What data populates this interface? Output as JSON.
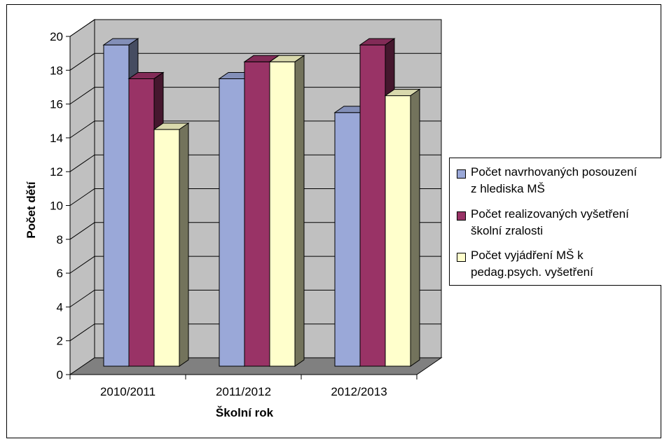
{
  "chart_data": {
    "type": "bar",
    "title": "",
    "xlabel": "Školní rok",
    "ylabel": "Počet dětí",
    "categories": [
      "2010/2011",
      "2011/2012",
      "2012/2013"
    ],
    "ylim": [
      0,
      20
    ],
    "yticks": [
      "0",
      "2",
      "4",
      "6",
      "8",
      "10",
      "12",
      "14",
      "16",
      "18",
      "20"
    ],
    "grid": true,
    "legend_position": "right",
    "series": [
      {
        "name": "Počet navrhovaných posouzení z hlediska MŠ",
        "values": [
          19,
          17,
          15
        ],
        "color": "#9aa8d8"
      },
      {
        "name": "Počet realizovaných vyšetření školní zralosti",
        "values": [
          17,
          18,
          19
        ],
        "color": "#993366"
      },
      {
        "name": "Počet vyjádření MŠ k pedag.psych. vyšetření",
        "values": [
          14,
          18,
          16
        ],
        "color": "#ffffcc"
      }
    ],
    "wall_color": "#c0c0c0",
    "floor_color": "#808080"
  },
  "legend": {
    "items": [
      {
        "label": "Počet navrhovaných posouzení\nz hlediska MŠ",
        "color": "#9aa8d8"
      },
      {
        "label": "Počet realizovaných vyšetření\nškolní zralosti",
        "color": "#993366"
      },
      {
        "label": "Počet vyjádření MŠ k\npedag.psych. vyšetření",
        "color": "#ffffcc"
      }
    ]
  }
}
